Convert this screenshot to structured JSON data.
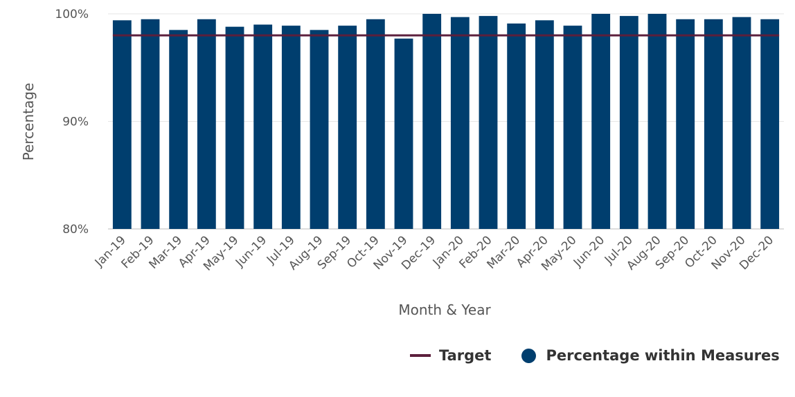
{
  "chart_data": {
    "type": "bar",
    "xlabel": "Month & Year",
    "ylabel": "Percentage",
    "ylim": [
      80,
      100
    ],
    "yticks": [
      "80%",
      "90%",
      "100%"
    ],
    "grid": true,
    "legend_position": "bottom-right",
    "categories": [
      "Jan-19",
      "Feb-19",
      "Mar-19",
      "Apr-19",
      "May-19",
      "Jun-19",
      "Jul-19",
      "Aug-19",
      "Sep-19",
      "Oct-19",
      "Nov-19",
      "Dec-19",
      "Jan-20",
      "Feb-20",
      "Mar-20",
      "Apr-20",
      "May-20",
      "Jun-20",
      "Jul-20",
      "Aug-20",
      "Sep-20",
      "Oct-20",
      "Nov-20",
      "Dec-20"
    ],
    "series": [
      {
        "name": "Percentage within Measures",
        "type": "bar",
        "color": "#003e6e",
        "values": [
          99.4,
          99.5,
          98.5,
          99.5,
          98.8,
          99.0,
          98.9,
          98.5,
          98.9,
          99.5,
          97.7,
          100.0,
          99.7,
          99.8,
          99.1,
          99.4,
          98.9,
          100.0,
          99.8,
          100.0,
          99.5,
          99.5,
          99.7,
          99.5
        ]
      },
      {
        "name": "Target",
        "type": "line",
        "color": "#5c1f3c",
        "values": [
          98,
          98,
          98,
          98,
          98,
          98,
          98,
          98,
          98,
          98,
          98,
          98,
          98,
          98,
          98,
          98,
          98,
          98,
          98,
          98,
          98,
          98,
          98,
          98
        ]
      }
    ]
  }
}
